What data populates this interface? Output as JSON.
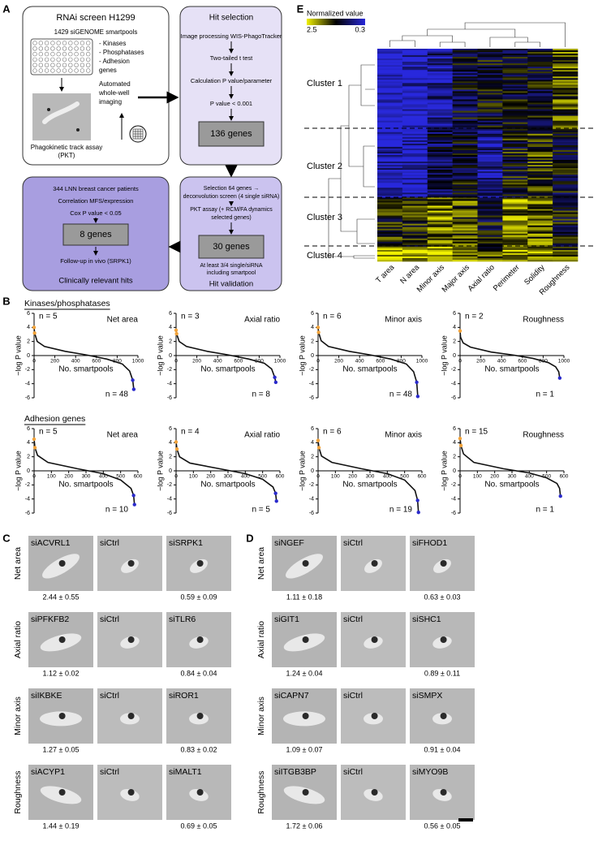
{
  "panel_a": {
    "label": "A",
    "screen": {
      "title": "RNAi screen H1299",
      "library": "1429 siGENOME smartpools",
      "groups": [
        "- Kinases",
        "- Phosphatases",
        "- Adhesion",
        "  genes"
      ],
      "imaging": [
        "Automated",
        "whole-well",
        "imaging"
      ],
      "assay": [
        "Phagokinetic track assay",
        "(PKT)"
      ]
    },
    "hit_selection": {
      "title": "Hit selection",
      "steps": [
        "Image processing WIS-PhagoTracker",
        "Two-tailed t test",
        "Calculation P value/parameter",
        "P value < 0.001"
      ],
      "result": "136 genes"
    },
    "hit_validation": {
      "title": "Hit validation",
      "steps": [
        "Selection 64 genes →",
        "deconvolution screen (4 single siRNA)",
        "PKT assay (+ RCM/FA dynamics",
        "selected genes)"
      ],
      "result": "30 genes",
      "notes": [
        "At least 3/4 single/siRNA",
        "including smartpool"
      ]
    },
    "clinical": {
      "title": "Clinically relevant hits",
      "steps": [
        "344 LNN breast cancer patients",
        "Correlation MFS/expression",
        "Cox P value < 0.05"
      ],
      "result": "8 genes",
      "note": "Follow-up in vivo (SRPK1)"
    }
  },
  "panel_b": {
    "label": "B",
    "y_label": "−log P value",
    "x_label": "No. smartpools",
    "up_color": "#f2a33a",
    "down_color": "#2a2acc",
    "groups": [
      {
        "heading": "Kinases/phosphatases",
        "xlim": [
          0,
          1000
        ],
        "xticks": [
          0,
          200,
          400,
          600,
          800,
          1000
        ],
        "ylim": [
          -6,
          6
        ],
        "yticks": [
          -6,
          -4,
          -2,
          0,
          2,
          4,
          6
        ],
        "plots": [
          {
            "title": "Net area",
            "color": "#e03c2a",
            "n_up": "n = 5",
            "n_down": "n = 48",
            "x": [
              0,
              5,
              30,
              100,
              300,
              500,
              700,
              850,
              920,
              950,
              960
            ],
            "values": [
              4,
              3.2,
              2,
              1.3,
              0.6,
              0.1,
              -0.5,
              -1.2,
              -2.2,
              -3.5,
              -4.8
            ]
          },
          {
            "title": "Axial ratio",
            "color": "#3a2fb0",
            "n_up": "n = 3",
            "n_down": "n = 8",
            "x": [
              0,
              5,
              30,
              100,
              300,
              500,
              700,
              850,
              920,
              950,
              960
            ],
            "values": [
              3.6,
              3.1,
              2,
              1.3,
              0.6,
              0.1,
              -0.5,
              -1.1,
              -1.9,
              -3.1,
              -3.8
            ]
          },
          {
            "title": "Minor axis",
            "color": "#4aaa3a",
            "n_up": "n = 6",
            "n_down": "n = 48",
            "x": [
              0,
              5,
              30,
              100,
              300,
              500,
              700,
              850,
              920,
              950,
              960
            ],
            "values": [
              4,
              3.3,
              2.1,
              1.3,
              0.6,
              0.1,
              -0.5,
              -1.2,
              -2.3,
              -3.8,
              -5.8
            ]
          },
          {
            "title": "Roughness",
            "color": "#9b3fb5",
            "n_up": "n = 2",
            "n_down": "n = 1",
            "x": [
              0,
              5,
              30,
              100,
              300,
              500,
              700,
              850,
              920,
              950,
              960
            ],
            "values": [
              3.5,
              2.6,
              1.8,
              1.2,
              0.5,
              0.1,
              -0.4,
              -1,
              -1.6,
              -2.3,
              -3.2
            ]
          }
        ]
      },
      {
        "heading": "Adhesion genes",
        "xlim": [
          0,
          600
        ],
        "xticks": [
          0,
          100,
          200,
          300,
          400,
          500,
          600
        ],
        "ylim": [
          -6,
          6
        ],
        "yticks": [
          -6,
          -4,
          -2,
          0,
          2,
          4,
          6
        ],
        "plots": [
          {
            "title": "Net area",
            "color": "#e03c2a",
            "n_up": "n = 5",
            "n_down": "n = 10",
            "x": [
              0,
              5,
              20,
              80,
              250,
              400,
              500,
              560,
              575,
              580
            ],
            "values": [
              4.5,
              3.3,
              2.2,
              1.2,
              0.3,
              -0.4,
              -1.3,
              -2.5,
              -3.5,
              -4.8
            ]
          },
          {
            "title": "Axial ratio",
            "color": "#3a2fb0",
            "n_up": "n = 4",
            "n_down": "n = 5",
            "x": [
              0,
              5,
              20,
              80,
              250,
              400,
              500,
              560,
              575,
              580
            ],
            "values": [
              4.1,
              3.1,
              2,
              1.1,
              0.3,
              -0.4,
              -1.2,
              -2.3,
              -3.2,
              -4.3
            ]
          },
          {
            "title": "Minor axis",
            "color": "#4aaa3a",
            "n_up": "n = 6",
            "n_down": "n = 19",
            "x": [
              0,
              5,
              20,
              80,
              250,
              400,
              500,
              560,
              575,
              580
            ],
            "values": [
              4.3,
              3.3,
              2.1,
              1.2,
              0.3,
              -0.4,
              -1.3,
              -2.8,
              -4.2,
              -5.9
            ]
          },
          {
            "title": "Roughness",
            "color": "#9b3fb5",
            "n_up": "n = 15",
            "n_down": "n = 1",
            "x": [
              0,
              5,
              20,
              80,
              250,
              400,
              500,
              560,
              575,
              580
            ],
            "values": [
              4.6,
              3.6,
              2.4,
              1.2,
              0.3,
              -0.3,
              -1,
              -1.8,
              -2.5,
              -3.6
            ]
          }
        ]
      }
    ]
  },
  "panel_c": {
    "label": "C",
    "rows": [
      {
        "row_label": "Net area",
        "color": "#e03c2a",
        "images": [
          "siACVRL1",
          "siCtrl",
          "siSRPK1"
        ],
        "values": [
          "2.44 ± 0.55",
          "0.59 ± 0.09"
        ]
      },
      {
        "row_label": "Axial ratio",
        "color": "#3a2fb0",
        "images": [
          "siPFKFB2",
          "siCtrl",
          "siTLR6"
        ],
        "values": [
          "1.12 ± 0.02",
          "0.84 ± 0.04"
        ]
      },
      {
        "row_label": "Minor axis",
        "color": "#4aaa3a",
        "images": [
          "siIKBKE",
          "siCtrl",
          "siROR1"
        ],
        "values": [
          "1.27 ± 0.05",
          "0.83 ± 0.02"
        ]
      },
      {
        "row_label": "Roughness",
        "color": "#9b3fb5",
        "images": [
          "siACYP1",
          "siCtrl",
          "siMALT1"
        ],
        "values": [
          "1.44 ± 0.19",
          "0.69 ± 0.05"
        ]
      }
    ]
  },
  "panel_d": {
    "label": "D",
    "rows": [
      {
        "row_label": "Net area",
        "color": "#e03c2a",
        "images": [
          "siNGEF",
          "siCtrl",
          "siFHOD1"
        ],
        "values": [
          "1.11 ± 0.18",
          "0.63 ± 0.03"
        ]
      },
      {
        "row_label": "Axial ratio",
        "color": "#3a2fb0",
        "images": [
          "siGIT1",
          "siCtrl",
          "siSHC1"
        ],
        "values": [
          "1.24 ± 0.04",
          "0.89 ± 0.11"
        ]
      },
      {
        "row_label": "Minor axis",
        "color": "#4aaa3a",
        "images": [
          "siCAPN7",
          "siCtrl",
          "siSMPX"
        ],
        "values": [
          "1.09 ± 0.07",
          "0.91 ± 0.04"
        ]
      },
      {
        "row_label": "Roughness",
        "color": "#9b3fb5",
        "images": [
          "siITGB3BP",
          "siCtrl",
          "siMYO9B"
        ],
        "values": [
          "1.72 ± 0.06",
          "0.56 ± 0.05"
        ]
      }
    ]
  },
  "panel_e": {
    "label": "E",
    "legend_title": "Normalized value",
    "colorbar": [
      2.5,
      0.3
    ],
    "clusters": [
      "Cluster 1",
      "Cluster 2",
      "Cluster 3",
      "Cluster 4"
    ],
    "columns": [
      {
        "name": "T area",
        "color": "#000000"
      },
      {
        "name": "N area",
        "color": "#e03c2a"
      },
      {
        "name": "Minor axis",
        "color": "#4aaa3a"
      },
      {
        "name": "Major axis",
        "color": "#000000"
      },
      {
        "name": "Axial ratio",
        "color": "#3a2fb0"
      },
      {
        "name": "Perimeter",
        "color": "#000000"
      },
      {
        "name": "Solidity",
        "color": "#000000"
      },
      {
        "name": "Roughness",
        "color": "#9b3fb5"
      }
    ]
  }
}
